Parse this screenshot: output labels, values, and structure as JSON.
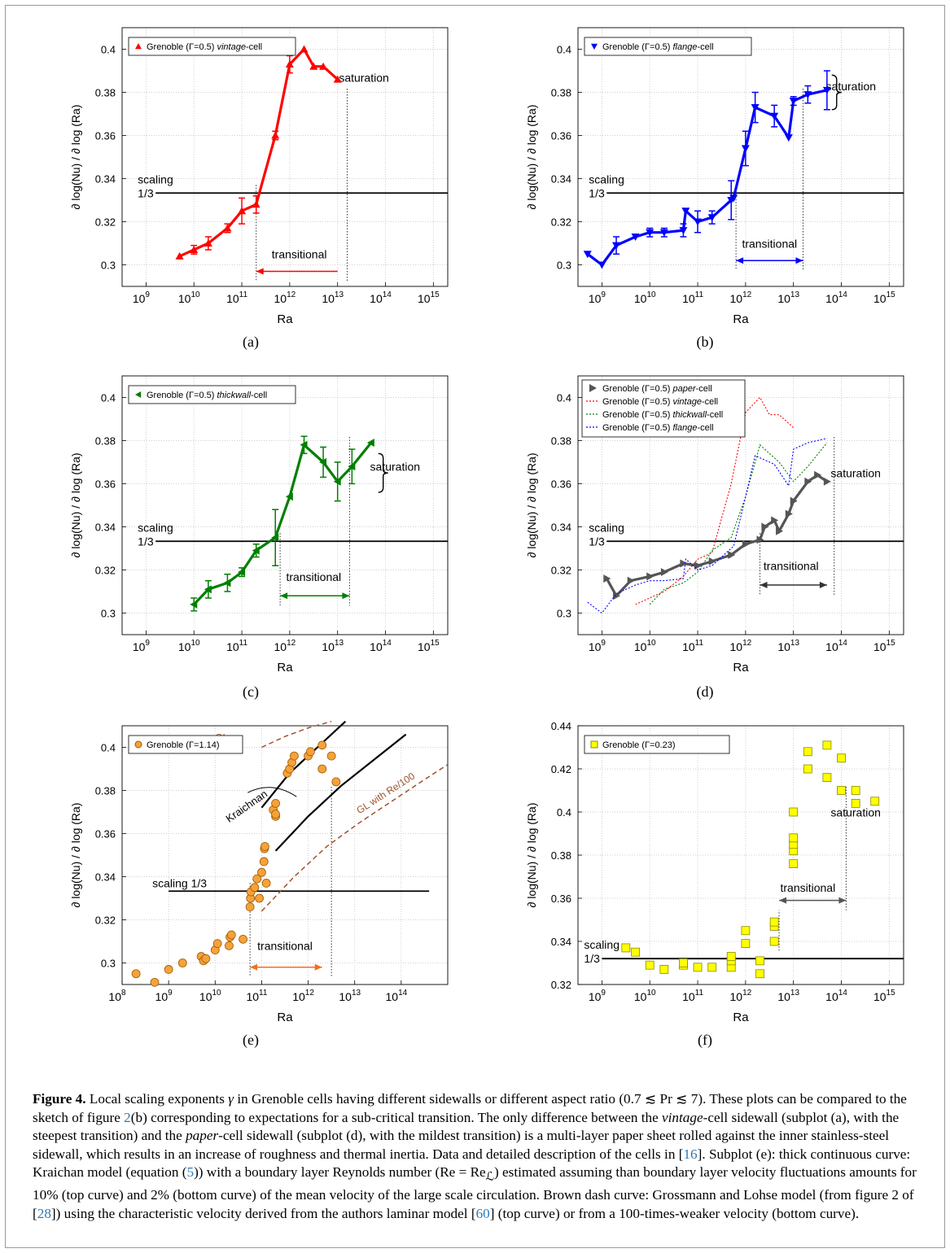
{
  "figure": {
    "label": "Figure 4.",
    "caption_parts": {
      "p1": " Local scaling exponents ",
      "gamma": "γ",
      "p2": " in Grenoble cells having different sidewalls or different aspect ratio (0.7 ≲ Pr ≲ 7). These plots can be compared to the sketch of figure ",
      "r1": "2",
      "p3": "(b) corresponding to expectations for a sub-critical transition. The only difference between the ",
      "i1": "vintage",
      "p4": "-cell sidewall (subplot (a), with the steepest transition) and the ",
      "i2": "paper",
      "p5": "-cell sidewall (subplot (d), with the mildest transition) is a multi-layer paper sheet rolled against the inner stainless-steel sidewall, which results in an increase of roughness and thermal inertia. Data and detailed description of the cells in [",
      "r2": "16",
      "p6": "]. Subplot (e): thick continuous curve: Kraichan model (equation (",
      "r3": "5",
      "p7": ")) with a boundary layer Reynolds number (Re = Re",
      "sub": "ℒ",
      "p8": ") estimated assuming than boundary layer velocity fluctuations amounts for 10% (top curve) and 2% (bottom curve) of the mean velocity of the large scale circulation. Brown dash curve: Grossmann and Lohse model (from figure 2 of [",
      "r4": "28",
      "p9": "]) using the characteristic velocity derived from the authors laminar model [",
      "r5": "60",
      "p10": "] (top curve) or from a 100-times-weaker velocity (bottom curve)."
    }
  },
  "axes_text": {
    "ylabel": "∂ log(Nu) / ∂ log (Ra)",
    "xlabel": "Ra",
    "scaling": "scaling",
    "one_third": "1/3",
    "scaling_inline": "scaling 1/3",
    "saturation": "saturation",
    "transitional": "transitional",
    "kraichnan": "Kraichnan",
    "gl": "GL",
    "gl_re": "GL with Re/100"
  },
  "colors": {
    "red": "#ff0000",
    "blue": "#0000ff",
    "green": "#007f00",
    "gray": "#555555",
    "orange": "#f5a23a",
    "yellow": "#ffff00",
    "brown": "#a0522d",
    "link": "#2a7ab8"
  },
  "chart_data": [
    {
      "id": "a",
      "type": "line",
      "subplot_label": "(a)",
      "legend": [
        "Grenoble (Γ=0.5) ",
        "vintage",
        "-cell"
      ],
      "marker": "triangle-up",
      "color": "#ff0000",
      "x_log": [
        9.7,
        10.0,
        10.3,
        10.7,
        11.0,
        11.3,
        11.7,
        12.0,
        12.3,
        12.5,
        12.7,
        13.0
      ],
      "y": [
        0.304,
        0.307,
        0.31,
        0.317,
        0.325,
        0.328,
        0.36,
        0.393,
        0.4,
        0.392,
        0.392,
        0.386
      ],
      "err": [
        0,
        0.002,
        0.003,
        0.002,
        0.006,
        0.004,
        0.002,
        0.004,
        0,
        0,
        0,
        0
      ],
      "xlim_log": [
        8.5,
        15.3
      ],
      "ylim": [
        0.29,
        0.41
      ],
      "xticks_log": [
        9,
        10,
        11,
        12,
        13,
        14,
        15
      ],
      "yticks": [
        0.3,
        0.32,
        0.34,
        0.36,
        0.38,
        0.4
      ],
      "yticklabels": [
        "0.3",
        "0.32",
        "0.34",
        "0.36",
        "0.38",
        "0.4"
      ],
      "scaling_level": 0.3333,
      "scaling_x_log": [
        9.2,
        15.3
      ],
      "scaling_text": "two-line",
      "vlines_log": [
        11.3,
        13.2
      ],
      "arrow": {
        "x1": 13.0,
        "x2": 11.3,
        "y": 0.297,
        "dir": "left",
        "color": "#ff0000"
      },
      "transitional_pos": {
        "x": 12.2,
        "y": 0.303
      },
      "saturation_pos": {
        "x": 13.55,
        "y": 0.385
      },
      "brace": null
    },
    {
      "id": "b",
      "type": "line",
      "subplot_label": "(b)",
      "legend": [
        "Grenoble (Γ=0.5) ",
        "flange",
        "-cell"
      ],
      "marker": "triangle-down",
      "color": "#0000ff",
      "x_log": [
        8.7,
        9.0,
        9.3,
        9.7,
        10.0,
        10.3,
        10.7,
        10.75,
        11.0,
        11.3,
        11.7,
        11.75,
        12.0,
        12.2,
        12.6,
        12.9,
        13.0,
        13.3,
        13.7
      ],
      "y": [
        0.305,
        0.3,
        0.309,
        0.313,
        0.315,
        0.315,
        0.316,
        0.325,
        0.32,
        0.322,
        0.33,
        0.331,
        0.354,
        0.373,
        0.369,
        0.359,
        0.376,
        0.379,
        0.381
      ],
      "err": [
        0,
        0,
        0.004,
        0,
        0.002,
        0.002,
        0.003,
        0,
        0.005,
        0.003,
        0.009,
        0,
        0.008,
        0.007,
        0.005,
        0,
        0.002,
        0.004,
        0.009
      ],
      "xlim_log": [
        8.5,
        15.3
      ],
      "ylim": [
        0.29,
        0.41
      ],
      "xticks_log": [
        9,
        10,
        11,
        12,
        13,
        14,
        15
      ],
      "yticks": [
        0.3,
        0.32,
        0.34,
        0.36,
        0.38,
        0.4
      ],
      "yticklabels": [
        "0.3",
        "0.32",
        "0.34",
        "0.36",
        "0.38",
        "0.4"
      ],
      "scaling_level": 0.3333,
      "scaling_x_log": [
        9.1,
        15.3
      ],
      "scaling_text": "two-line",
      "vlines_log": [
        11.8,
        13.2
      ],
      "arrow": {
        "x1": 11.8,
        "x2": 13.2,
        "y": 0.302,
        "dir": "both",
        "color": "#0000ff"
      },
      "transitional_pos": {
        "x": 12.5,
        "y": 0.308
      },
      "saturation_pos": {
        "x": 14.2,
        "y": 0.381
      },
      "brace": {
        "x": 13.8,
        "y1": 0.372,
        "y2": 0.388
      }
    },
    {
      "id": "c",
      "type": "line",
      "subplot_label": "(c)",
      "legend": [
        "Grenoble (Γ=0.5) ",
        "thickwall",
        "-cell"
      ],
      "marker": "triangle-left",
      "color": "#007f00",
      "x_log": [
        10.0,
        10.3,
        10.7,
        11.0,
        11.3,
        11.7,
        12.0,
        12.3,
        12.7,
        13.0,
        13.3,
        13.7
      ],
      "y": [
        0.304,
        0.311,
        0.314,
        0.319,
        0.329,
        0.335,
        0.354,
        0.378,
        0.37,
        0.361,
        0.368,
        0.379
      ],
      "err": [
        0.003,
        0.004,
        0.004,
        0.002,
        0.003,
        0.013,
        0,
        0.004,
        0.007,
        0.009,
        0.008,
        0
      ],
      "xlim_log": [
        8.5,
        15.3
      ],
      "ylim": [
        0.29,
        0.41
      ],
      "xticks_log": [
        9,
        10,
        11,
        12,
        13,
        14,
        15
      ],
      "yticks": [
        0.3,
        0.32,
        0.34,
        0.36,
        0.38,
        0.4
      ],
      "yticklabels": [
        "0.3",
        "0.32",
        "0.34",
        "0.36",
        "0.38",
        "0.4"
      ],
      "scaling_level": 0.3333,
      "scaling_x_log": [
        9.2,
        15.3
      ],
      "scaling_text": "two-line",
      "vlines_log": [
        11.8,
        13.25
      ],
      "arrow": {
        "x1": 11.8,
        "x2": 13.25,
        "y": 0.308,
        "dir": "both",
        "color": "#007f00"
      },
      "transitional_pos": {
        "x": 12.5,
        "y": 0.315
      },
      "saturation_pos": {
        "x": 14.2,
        "y": 0.366
      },
      "brace": {
        "x": 13.85,
        "y1": 0.356,
        "y2": 0.374
      }
    },
    {
      "id": "d",
      "type": "line",
      "subplot_label": "(d)",
      "legends": [
        {
          "parts": [
            "Grenoble (Γ=0.5) ",
            "paper",
            "-cell"
          ],
          "color": "#555555",
          "marker": "triangle-right"
        },
        {
          "parts": [
            "Grenoble (Γ=0.5) ",
            "vintage",
            "-cell"
          ],
          "color": "#ff0000",
          "marker": "dotted"
        },
        {
          "parts": [
            "Grenoble (Γ=0.5) ",
            "thickwall",
            "-cell"
          ],
          "color": "#007f00",
          "marker": "dotted"
        },
        {
          "parts": [
            "Grenoble (Γ=0.5) ",
            "flange",
            "-cell"
          ],
          "color": "#0000ff",
          "marker": "dotted"
        }
      ],
      "series": [
        {
          "name": "paper",
          "color": "#555555",
          "x_log": [
            9.1,
            9.3,
            9.6,
            10.0,
            10.3,
            10.7,
            11.0,
            11.3,
            11.7,
            12.0,
            12.3,
            12.4,
            12.6,
            12.7,
            12.9,
            13.0,
            13.3,
            13.5,
            13.7
          ],
          "y": [
            0.316,
            0.308,
            0.315,
            0.317,
            0.319,
            0.323,
            0.322,
            0.324,
            0.327,
            0.332,
            0.334,
            0.34,
            0.343,
            0.338,
            0.346,
            0.352,
            0.361,
            0.364,
            0.361
          ]
        },
        {
          "name": "vintage",
          "color": "#ff0000",
          "x_log": [
            9.7,
            10.0,
            10.3,
            10.7,
            11.0,
            11.3,
            11.7,
            12.0,
            12.3,
            12.5,
            12.7,
            13.0
          ],
          "y": [
            0.304,
            0.307,
            0.31,
            0.317,
            0.325,
            0.328,
            0.36,
            0.393,
            0.4,
            0.392,
            0.392,
            0.386
          ]
        },
        {
          "name": "thickwall",
          "color": "#007f00",
          "x_log": [
            10.0,
            10.3,
            10.7,
            11.0,
            11.3,
            11.7,
            12.0,
            12.3,
            12.7,
            13.0,
            13.3,
            13.7
          ],
          "y": [
            0.304,
            0.311,
            0.314,
            0.319,
            0.329,
            0.335,
            0.354,
            0.378,
            0.37,
            0.361,
            0.368,
            0.379
          ]
        },
        {
          "name": "flange",
          "color": "#0000ff",
          "x_log": [
            8.7,
            9.0,
            9.3,
            9.7,
            10.0,
            10.3,
            10.7,
            10.75,
            11.0,
            11.3,
            11.7,
            11.75,
            12.0,
            12.2,
            12.6,
            12.9,
            13.0,
            13.3,
            13.7
          ],
          "y": [
            0.305,
            0.3,
            0.309,
            0.313,
            0.315,
            0.315,
            0.316,
            0.325,
            0.32,
            0.322,
            0.33,
            0.331,
            0.354,
            0.373,
            0.369,
            0.359,
            0.376,
            0.379,
            0.381
          ]
        }
      ],
      "xlim_log": [
        8.5,
        15.3
      ],
      "ylim": [
        0.29,
        0.41
      ],
      "xticks_log": [
        9,
        10,
        11,
        12,
        13,
        14,
        15
      ],
      "yticks": [
        0.3,
        0.32,
        0.34,
        0.36,
        0.38,
        0.4
      ],
      "yticklabels": [
        "0.3",
        "0.32",
        "0.34",
        "0.36",
        "0.38",
        "0.4"
      ],
      "scaling_level": 0.3333,
      "scaling_x_log": [
        9.1,
        15.3
      ],
      "scaling_text": "two-line",
      "vlines_log": [
        12.3,
        13.85
      ],
      "arrow": {
        "x1": 12.3,
        "x2": 13.7,
        "y": 0.313,
        "dir": "both",
        "color": "#333333"
      },
      "transitional_pos": {
        "x": 12.95,
        "y": 0.32
      },
      "saturation_pos": {
        "x": 14.3,
        "y": 0.363
      },
      "brace": null
    },
    {
      "id": "e",
      "type": "scatter",
      "subplot_label": "(e)",
      "legend": [
        "Grenoble (Γ=1.14)"
      ],
      "marker": "circle",
      "color": "#f5a23a",
      "x_log": [
        8.3,
        8.7,
        9.0,
        9.3,
        9.7,
        9.75,
        9.8,
        10.0,
        10.05,
        10.3,
        10.32,
        10.35,
        10.6,
        10.75,
        10.76,
        10.77,
        10.85,
        10.9,
        10.95,
        11.0,
        11.05,
        11.06,
        11.07,
        11.1,
        11.25,
        11.3,
        11.3,
        11.3,
        11.55,
        11.6,
        11.65,
        11.7,
        12.0,
        12.05,
        12.3,
        12.3,
        12.5,
        12.6
      ],
      "y": [
        0.295,
        0.291,
        0.297,
        0.3,
        0.303,
        0.301,
        0.302,
        0.306,
        0.309,
        0.308,
        0.312,
        0.313,
        0.311,
        0.326,
        0.33,
        0.333,
        0.335,
        0.339,
        0.33,
        0.342,
        0.347,
        0.353,
        0.354,
        0.337,
        0.371,
        0.368,
        0.369,
        0.374,
        0.388,
        0.39,
        0.393,
        0.396,
        0.396,
        0.398,
        0.39,
        0.401,
        0.396,
        0.384
      ],
      "xlim_log": [
        8.0,
        15.0
      ],
      "ylim": [
        0.29,
        0.41
      ],
      "xticks_log": [
        8,
        9,
        10,
        11,
        12,
        13,
        14
      ],
      "yticks": [
        0.3,
        0.32,
        0.34,
        0.36,
        0.38,
        0.4
      ],
      "yticklabels": [
        "0.3",
        "0.32",
        "0.34",
        "0.36",
        "0.38",
        "0.4"
      ],
      "scaling_level": 0.3333,
      "scaling_x_log": [
        9.0,
        14.6
      ],
      "scaling_text": "inline",
      "vlines_log": [
        10.75,
        12.5
      ],
      "arrow": {
        "x1": 10.75,
        "x2": 12.3,
        "y": 0.298,
        "dir": "both",
        "color": "#f07020"
      },
      "transitional_pos": {
        "x": 11.5,
        "y": 0.306
      },
      "models": [
        {
          "name": "kraichnan-top",
          "style": "solid",
          "x_log": [
            11.0,
            11.6,
            12.2,
            12.8
          ],
          "y": [
            0.372,
            0.388,
            0.4,
            0.412
          ]
        },
        {
          "name": "kraichnan-bottom",
          "style": "solid",
          "x_log": [
            11.3,
            12.0,
            12.7,
            13.4,
            14.1
          ],
          "y": [
            0.352,
            0.368,
            0.382,
            0.394,
            0.406
          ]
        },
        {
          "name": "gl-top",
          "style": "dashed",
          "x_log": [
            11.0,
            11.5,
            12.0,
            12.5
          ],
          "y": [
            0.4,
            0.405,
            0.409,
            0.412
          ]
        },
        {
          "name": "gl-re100",
          "style": "dashed",
          "x_log": [
            11.0,
            11.7,
            12.4,
            13.1,
            13.8,
            14.5,
            15.0
          ],
          "y": [
            0.324,
            0.34,
            0.354,
            0.365,
            0.375,
            0.385,
            0.392
          ]
        }
      ]
    },
    {
      "id": "f",
      "type": "scatter",
      "subplot_label": "(f)",
      "legend": [
        "Grenoble (Γ=0.23)"
      ],
      "marker": "square",
      "color": "#ffff00",
      "x_log": [
        9.5,
        9.7,
        10.0,
        10.3,
        10.7,
        10.7,
        11.0,
        11.3,
        11.7,
        11.7,
        11.7,
        12.0,
        12.0,
        12.3,
        12.3,
        12.6,
        12.6,
        12.6,
        13.0,
        13.0,
        13.0,
        13.0,
        13.0,
        13.3,
        13.3,
        13.7,
        13.7,
        14.0,
        14.0,
        14.3,
        14.3,
        14.7
      ],
      "y": [
        0.337,
        0.335,
        0.329,
        0.327,
        0.329,
        0.33,
        0.328,
        0.328,
        0.328,
        0.331,
        0.333,
        0.339,
        0.345,
        0.325,
        0.331,
        0.34,
        0.347,
        0.349,
        0.376,
        0.382,
        0.385,
        0.388,
        0.4,
        0.42,
        0.428,
        0.416,
        0.431,
        0.41,
        0.425,
        0.404,
        0.41,
        0.405
      ],
      "xlim_log": [
        8.5,
        15.3
      ],
      "ylim": [
        0.32,
        0.44
      ],
      "xticks_log": [
        9,
        10,
        11,
        12,
        13,
        14,
        15
      ],
      "yticks": [
        0.32,
        0.34,
        0.36,
        0.38,
        0.4,
        0.42,
        0.44
      ],
      "yticklabels": [
        "0.32",
        "0.34",
        "0.36",
        "0.38",
        "0.4",
        "0.42",
        "0.44"
      ],
      "scaling_level": 0.332,
      "scaling_x_log": [
        9.0,
        15.3
      ],
      "scaling_text": "two-line",
      "vlines_log": [
        12.7,
        14.1
      ],
      "arrow": {
        "x1": 12.7,
        "x2": 14.1,
        "y": 0.359,
        "dir": "both",
        "color": "#555555"
      },
      "transitional_pos": {
        "x": 13.3,
        "y": 0.363
      },
      "saturation_pos": {
        "x": 14.3,
        "y": 0.398
      },
      "brace": null
    }
  ]
}
